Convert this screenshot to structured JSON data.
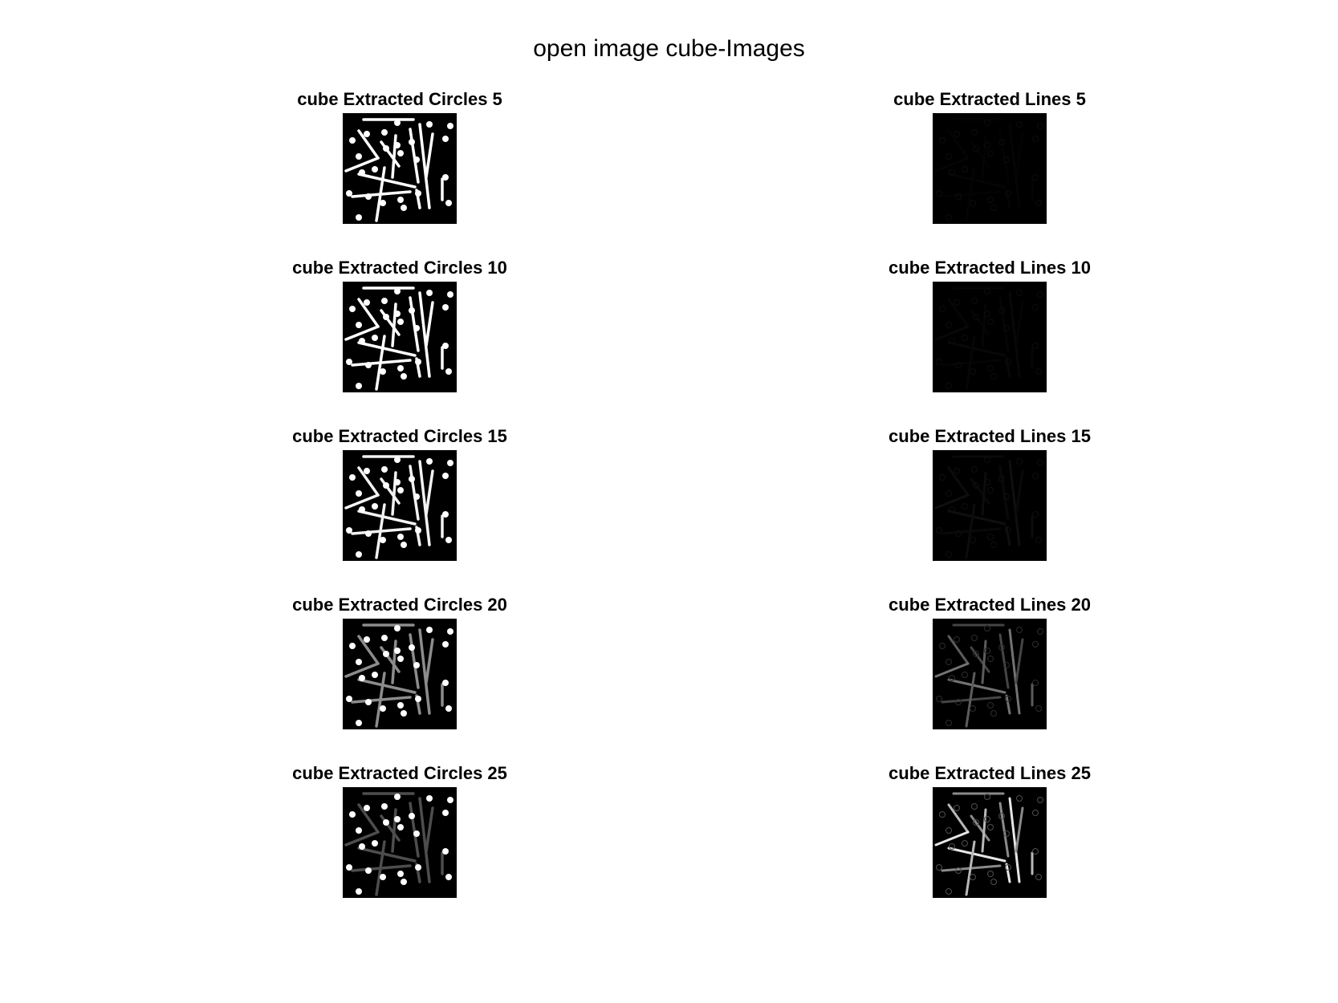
{
  "figure": {
    "title": "open image cube-Images"
  },
  "left_column": [
    {
      "title": "cube Extracted Circles 5",
      "line_level": 1.0
    },
    {
      "title": "cube Extracted Circles 10",
      "line_level": 1.0
    },
    {
      "title": "cube Extracted Circles 15",
      "line_level": 0.95
    },
    {
      "title": "cube Extracted Circles 20",
      "line_level": 0.55
    },
    {
      "title": "cube Extracted Circles 25",
      "line_level": 0.3
    }
  ],
  "right_column": [
    {
      "title": "cube Extracted Lines 5",
      "line_level": 0.02
    },
    {
      "title": "cube Extracted Lines 10",
      "line_level": 0.03
    },
    {
      "title": "cube Extracted Lines 15",
      "line_level": 0.06
    },
    {
      "title": "cube Extracted Lines 20",
      "line_level": 0.45
    },
    {
      "title": "cube Extracted Lines 25",
      "line_level": 0.9
    }
  ],
  "colors": {
    "background": "#ffffff",
    "image_background": "#000000",
    "foreground": "#ffffff"
  }
}
